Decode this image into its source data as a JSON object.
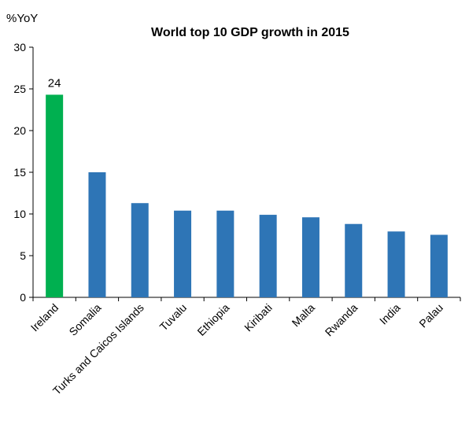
{
  "chart_data": {
    "type": "bar",
    "title": "World top 10 GDP growth in 2015",
    "unit_label": "%YoY",
    "xlabel": "",
    "ylabel": "",
    "ylim": [
      0,
      30
    ],
    "yticks": [
      0,
      5,
      10,
      15,
      20,
      25,
      30
    ],
    "grid": false,
    "legend": "none",
    "categories": [
      "Ireland",
      "Somalia",
      "Turks and Caicos Islands",
      "Tuvalu",
      "Ethiopia",
      "Kiribati",
      "Malta",
      "Rwanda",
      "India",
      "Palau"
    ],
    "values": [
      24.3,
      15.0,
      11.3,
      10.4,
      10.4,
      9.9,
      9.6,
      8.8,
      7.9,
      7.5
    ],
    "colors": [
      "#00b050",
      "#2e75b6",
      "#2e75b6",
      "#2e75b6",
      "#2e75b6",
      "#2e75b6",
      "#2e75b6",
      "#2e75b6",
      "#2e75b6",
      "#2e75b6"
    ],
    "data_labels": [
      {
        "index": 0,
        "text": "24"
      }
    ]
  }
}
